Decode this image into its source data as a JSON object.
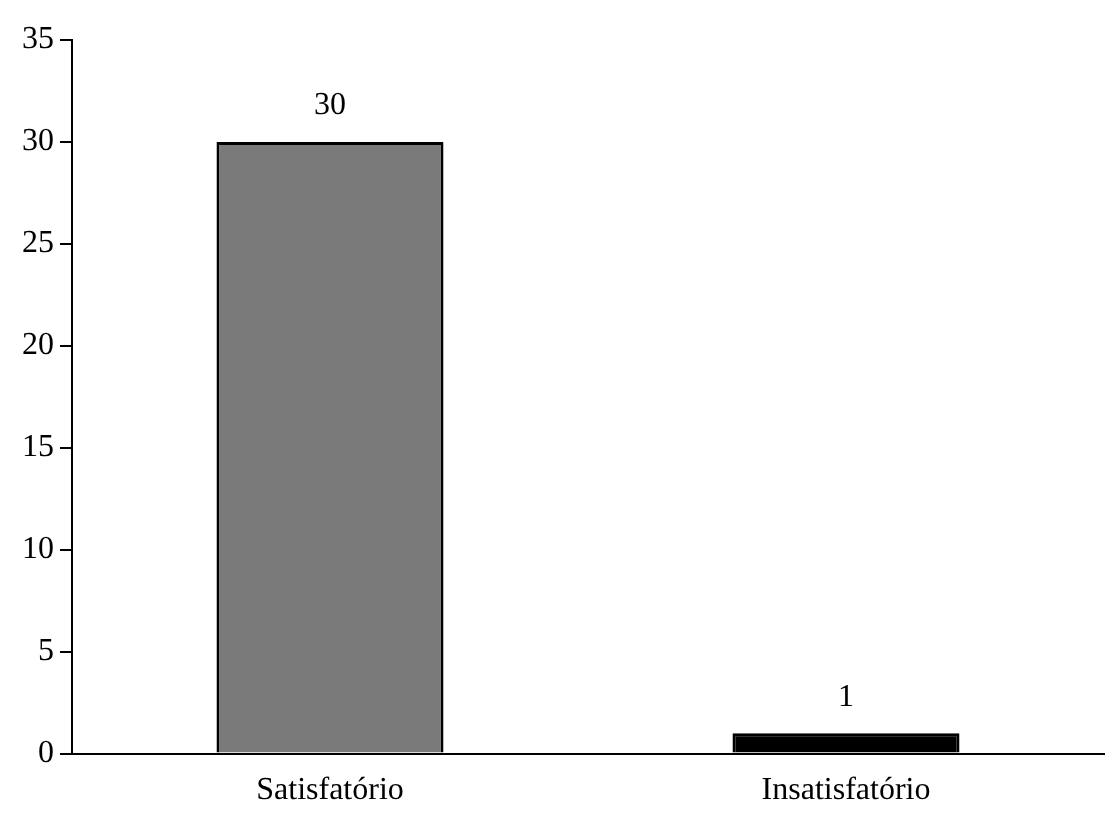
{
  "chart_data": {
    "type": "bar",
    "categories": [
      "Satisfatório",
      "Insatisfatório"
    ],
    "values": [
      30,
      1
    ],
    "colors": [
      "#7a7a7a",
      "#000000"
    ],
    "ylim": [
      0,
      35
    ],
    "yticks": [
      0,
      5,
      10,
      15,
      20,
      25,
      30,
      35
    ],
    "grid": false,
    "legend": false,
    "data_labels": true
  }
}
